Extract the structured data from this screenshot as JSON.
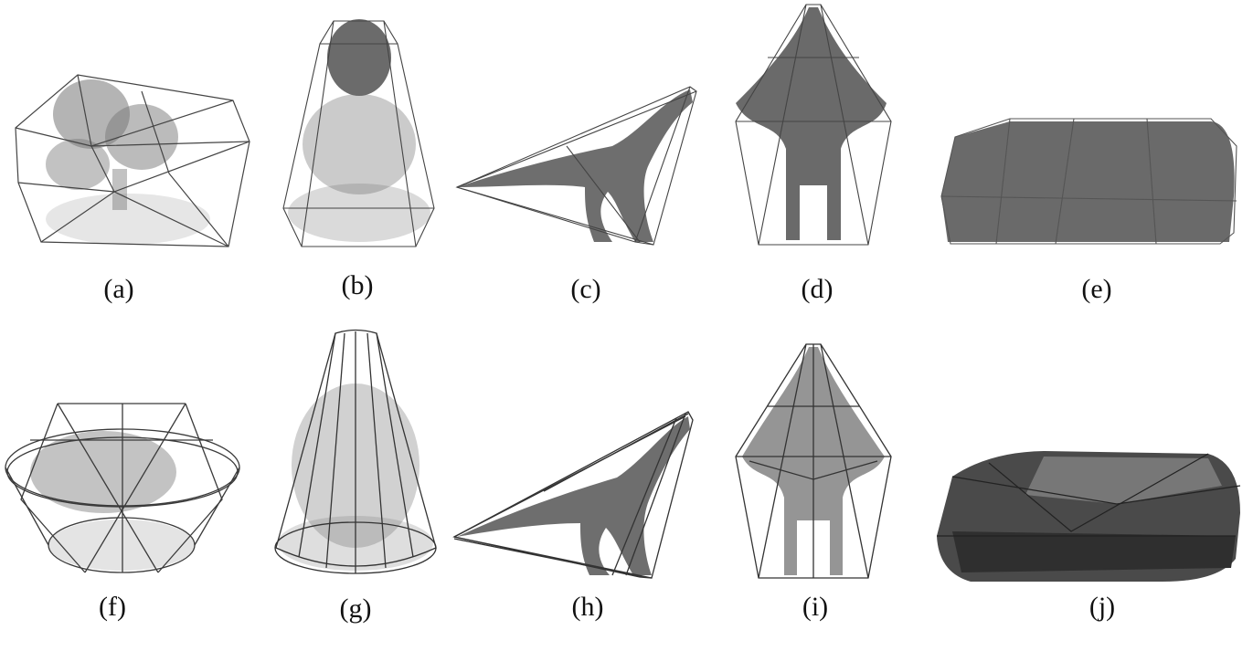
{
  "figure": {
    "panels": [
      {
        "id": "a",
        "label": "(a)",
        "object": "fruit-basket",
        "hull": "coarse"
      },
      {
        "id": "b",
        "label": "(b)",
        "object": "buddha-statue",
        "hull": "coarse"
      },
      {
        "id": "c",
        "label": "(c)",
        "object": "dinosaur",
        "hull": "coarse"
      },
      {
        "id": "d",
        "label": "(d)",
        "object": "dragon-top-view",
        "hull": "coarse"
      },
      {
        "id": "e",
        "label": "(e)",
        "object": "car",
        "hull": "coarse"
      },
      {
        "id": "f",
        "label": "(f)",
        "object": "fruit-basket",
        "hull": "dense"
      },
      {
        "id": "g",
        "label": "(g)",
        "object": "buddha-statue",
        "hull": "dense"
      },
      {
        "id": "h",
        "label": "(h)",
        "object": "dinosaur",
        "hull": "dense"
      },
      {
        "id": "i",
        "label": "(i)",
        "object": "dragon-top-view",
        "hull": "dense"
      },
      {
        "id": "j",
        "label": "(j)",
        "object": "car",
        "hull": "dense"
      }
    ],
    "colors": {
      "points": "#6e6e6e",
      "edges": "#3a3a3a",
      "background": "#ffffff"
    }
  }
}
